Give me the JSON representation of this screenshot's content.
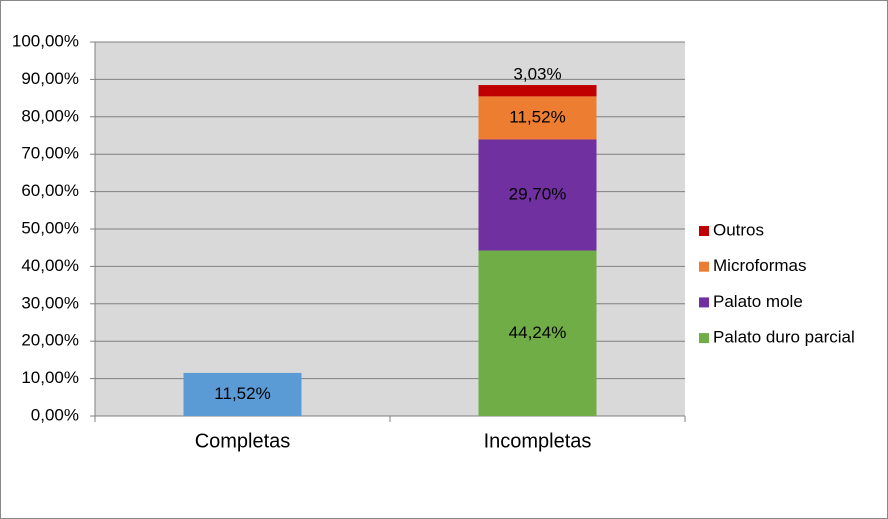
{
  "chart_data": {
    "type": "stacked_bar",
    "categories": [
      "Completas",
      "Incompletas"
    ],
    "series": [
      {
        "color": "#5b9bd5",
        "values": [
          11.52,
          null
        ],
        "value_labels": [
          "11,52%",
          null
        ]
      },
      {
        "name": "Palato duro parcial",
        "color": "#70ad47",
        "values": [
          null,
          44.24
        ],
        "value_labels": [
          null,
          "44,24%"
        ]
      },
      {
        "name": "Palato mole",
        "color": "#7030a0",
        "values": [
          null,
          29.7
        ],
        "value_labels": [
          null,
          "29,70%"
        ]
      },
      {
        "name": "Microformas",
        "color": "#ed7d31",
        "values": [
          null,
          11.52
        ],
        "value_labels": [
          null,
          "11,52%"
        ]
      },
      {
        "name": "Outros",
        "color": "#c00000",
        "values": [
          null,
          3.03
        ],
        "value_labels": [
          null,
          "3,03%"
        ]
      }
    ],
    "ylim": [
      0,
      100
    ],
    "yticks": [
      {
        "value": 0,
        "label": "0,00%"
      },
      {
        "value": 10,
        "label": "10,00%"
      },
      {
        "value": 20,
        "label": "20,00%"
      },
      {
        "value": 30,
        "label": "30,00%"
      },
      {
        "value": 40,
        "label": "40,00%"
      },
      {
        "value": 50,
        "label": "50,00%"
      },
      {
        "value": 60,
        "label": "60,00%"
      },
      {
        "value": 70,
        "label": "70,00%"
      },
      {
        "value": 80,
        "label": "80,00%"
      },
      {
        "value": 90,
        "label": "90,00%"
      },
      {
        "value": 100,
        "label": "100,00%"
      }
    ],
    "grid": true,
    "legend": "right"
  }
}
